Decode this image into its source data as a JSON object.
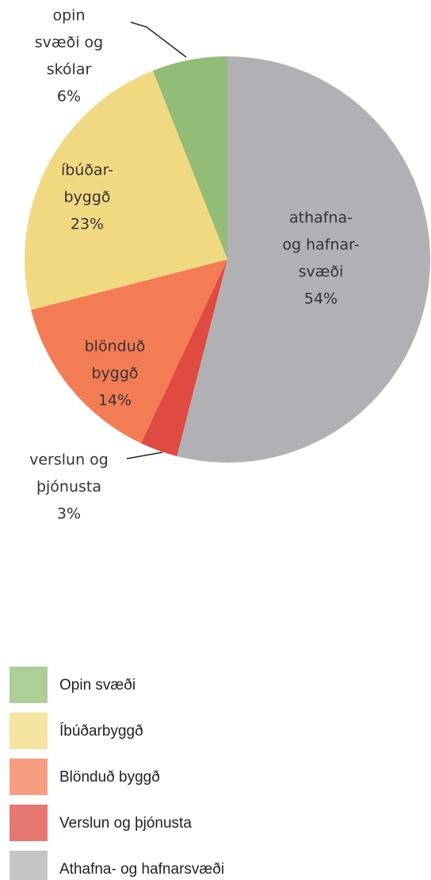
{
  "chart_data": {
    "type": "pie",
    "categories": [
      "Opin svæði",
      "Íbúðarbyggð",
      "Blönduð byggð",
      "Verslun og þjónusta",
      "Athafna- og hafnarsvæði"
    ],
    "values": [
      6,
      23,
      14,
      3,
      54
    ],
    "value_labels": [
      "6%",
      "23%",
      "14%",
      "3%",
      "54%"
    ],
    "slice_labels": [
      [
        "opin",
        "svæði og",
        "skólar"
      ],
      [
        "íbúðar-",
        "byggð"
      ],
      [
        "blönduð",
        "byggð"
      ],
      [
        "verslun og",
        "þjónusta"
      ],
      [
        "athafna-",
        "og hafnar-",
        "svæði"
      ]
    ],
    "colors": [
      "#93bd77",
      "#f1d982",
      "#f47c55",
      "#df4a41",
      "#b1b0b4"
    ],
    "legend": true
  }
}
